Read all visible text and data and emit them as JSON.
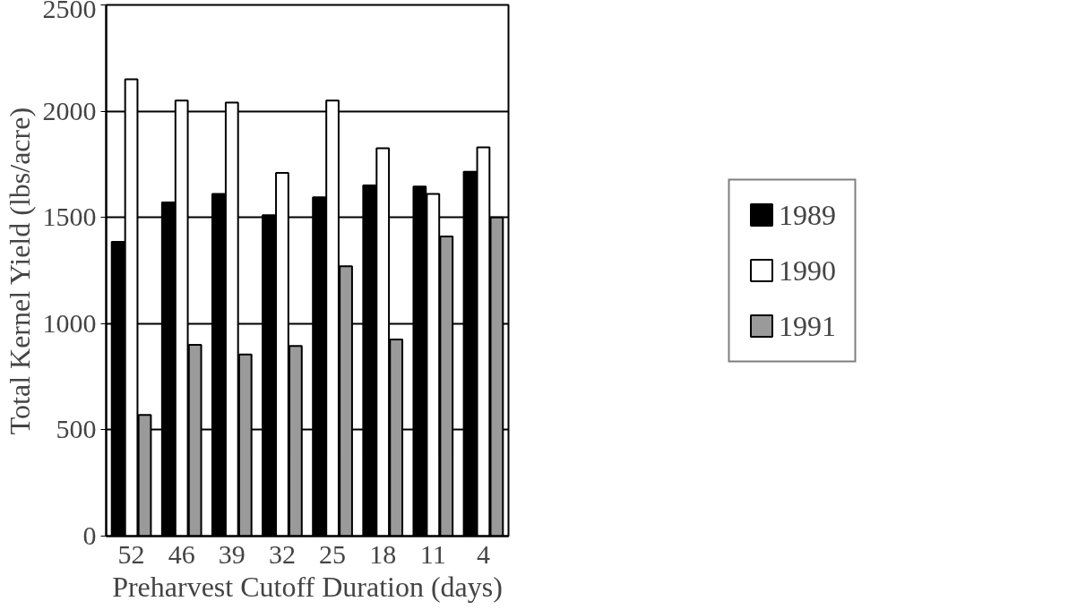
{
  "chart_data": {
    "type": "bar",
    "xlabel": "Preharvest Cutoff Duration (days)",
    "ylabel": "Total Kernel Yield (lbs/acre)",
    "categories": [
      "52",
      "46",
      "39",
      "32",
      "25",
      "18",
      "11",
      "4"
    ],
    "series": [
      {
        "name": "1989",
        "color": "#000000",
        "values": [
          1385,
          1570,
          1610,
          1510,
          1595,
          1650,
          1645,
          1715
        ]
      },
      {
        "name": "1990",
        "color": "#ffffff",
        "values": [
          2150,
          2050,
          2040,
          1710,
          2050,
          1825,
          1610,
          1830
        ]
      },
      {
        "name": "1991",
        "color": "#9a9a9a",
        "values": [
          570,
          900,
          855,
          895,
          1270,
          925,
          1410,
          1500
        ]
      }
    ],
    "ylim": [
      0,
      2500
    ],
    "yticks": [
      0,
      500,
      1000,
      1500,
      2000,
      2500
    ],
    "grid": "y",
    "legend": "right"
  }
}
